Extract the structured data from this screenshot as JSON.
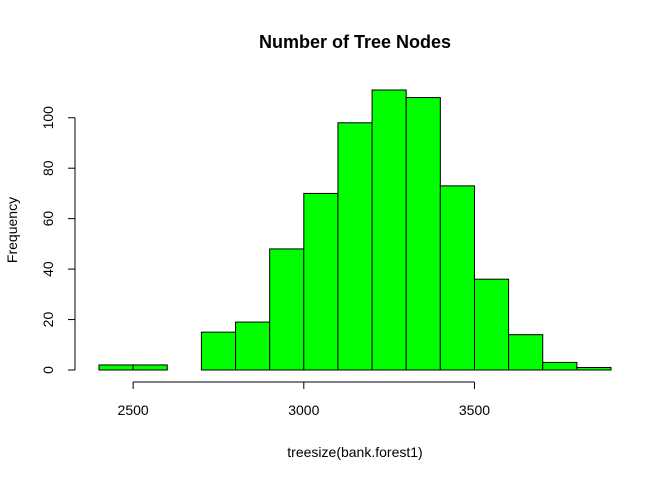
{
  "chart_data": {
    "type": "bar",
    "title": "Number of Tree Nodes",
    "xlabel": "treesize(bank.forest1)",
    "ylabel": "Frequency",
    "bin_edges": [
      2400,
      2500,
      2600,
      2700,
      2800,
      2900,
      3000,
      3100,
      3200,
      3300,
      3400,
      3500,
      3600,
      3700,
      3800,
      3900
    ],
    "values": [
      2,
      2,
      0,
      15,
      19,
      48,
      70,
      98,
      111,
      108,
      73,
      36,
      14,
      3,
      1
    ],
    "xticks": [
      2500,
      3000,
      3500
    ],
    "yticks": [
      0,
      20,
      40,
      60,
      80,
      100
    ],
    "xlim": [
      2400,
      3900
    ],
    "ylim": [
      0,
      111
    ],
    "bar_color": "#00ff00",
    "grid": false,
    "legend": "none"
  }
}
